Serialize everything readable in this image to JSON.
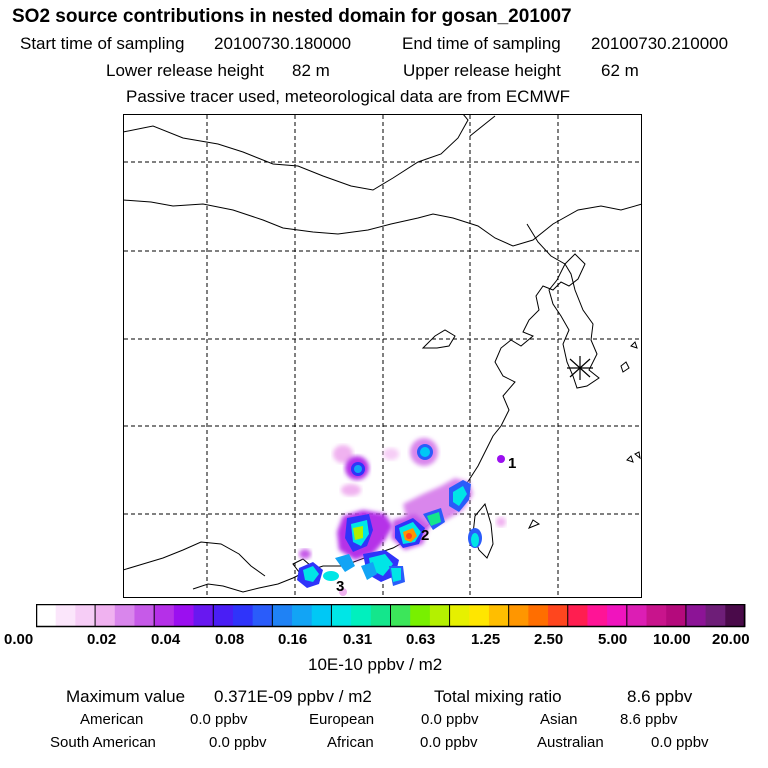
{
  "title": "SO2 source contributions in nested domain for gosan_201007",
  "sampling": {
    "start_label": "Start time of sampling",
    "start_value": "20100730.180000",
    "end_label": "End time of sampling",
    "end_value": "20100730.210000"
  },
  "release": {
    "lower_label": "Lower release height",
    "lower_value": "82 m",
    "upper_label": "Upper release height",
    "upper_value": "62 m"
  },
  "note": "Passive tracer used, meteorological data are from ECMWF",
  "map": {
    "source_labels": [
      "1",
      "2",
      "3"
    ],
    "receptor_marker": "gosan-receptor-star"
  },
  "colorbar": {
    "colors": [
      "#ffffff",
      "#fbe6fb",
      "#f6cdf6",
      "#f0b2f0",
      "#d986ec",
      "#c65ae8",
      "#b530e8",
      "#9b0ff0",
      "#6818f0",
      "#4a1ef5",
      "#2f34fa",
      "#2a5cfa",
      "#1f82f5",
      "#12a4f5",
      "#00c8f5",
      "#00e6e6",
      "#00f0be",
      "#14e68c",
      "#3ce65a",
      "#78f000",
      "#b4f000",
      "#e6f000",
      "#ffe600",
      "#ffbe00",
      "#ff9600",
      "#ff6e00",
      "#ff461e",
      "#ff1e50",
      "#ff1496",
      "#f014be",
      "#dc1eb4",
      "#c8148c",
      "#b40a7c",
      "#8c1496",
      "#6e1e78",
      "#4a0a4a"
    ],
    "tick_labels": [
      "0.00",
      "0.02",
      "0.04",
      "0.08",
      "0.16",
      "0.31",
      "0.63",
      "1.25",
      "2.50",
      "5.00",
      "10.00",
      "20.00"
    ],
    "units": "10E-10 ppbv / m2"
  },
  "stats": {
    "max_label": "Maximum value",
    "max_value": "0.371E-09 ppbv / m2",
    "total_label": "Total mixing ratio",
    "total_value": "8.6 ppbv",
    "regions": [
      {
        "name": "American",
        "value": "0.0 ppbv"
      },
      {
        "name": "European",
        "value": "0.0 ppbv"
      },
      {
        "name": "Asian",
        "value": "8.6 ppbv"
      },
      {
        "name": "South American",
        "value": "0.0 ppbv"
      },
      {
        "name": "African",
        "value": "0.0 ppbv"
      },
      {
        "name": "Australian",
        "value": "0.0 ppbv"
      }
    ]
  }
}
